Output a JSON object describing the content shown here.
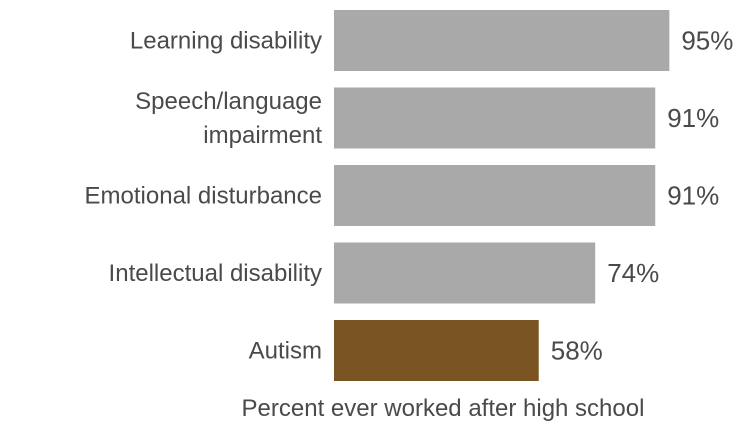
{
  "chart_data": {
    "type": "bar",
    "orientation": "horizontal",
    "categories": [
      [
        "Learning disability"
      ],
      [
        "Speech/language",
        "impairment"
      ],
      [
        "Emotional disturbance"
      ],
      [
        "Intellectual disability"
      ],
      [
        "Autism"
      ]
    ],
    "values": [
      95,
      91,
      91,
      74,
      58
    ],
    "value_labels": [
      "95%",
      "91%",
      "91%",
      "74%",
      "58%"
    ],
    "bar_colors": [
      "#a9a9a9",
      "#a9a9a9",
      "#a9a9a9",
      "#a9a9a9",
      "#7a5523"
    ],
    "xlabel": "Percent ever worked after high school",
    "xlim": [
      0,
      100
    ],
    "grid": false,
    "legend": "none"
  }
}
